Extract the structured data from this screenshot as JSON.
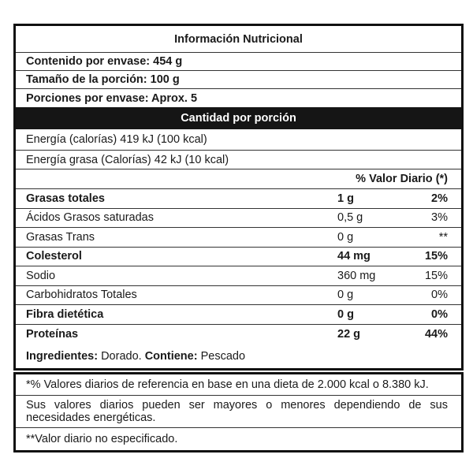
{
  "title": "Información Nutricional",
  "info": [
    "Contenido por envase: 454 g",
    "Tamaño de la porción: 100 g",
    "Porciones por envase: Aprox. 5"
  ],
  "band": "Cantidad por porción",
  "energy": [
    "Energía (calorías) 419 kJ (100 kcal)",
    "Energía grasa (Calorías) 42 kJ (10 kcal)"
  ],
  "vd_header": "% Valor Diario (*)",
  "nutrients": [
    {
      "name": "Grasas totales",
      "amount": "1 g",
      "pct": "2%",
      "bold": true
    },
    {
      "name": "Ácidos Grasos saturadas",
      "amount": "0,5 g",
      "pct": "3%",
      "bold": false
    },
    {
      "name": "Grasas Trans",
      "amount": "0 g",
      "pct": "**",
      "bold": false
    },
    {
      "name": "Colesterol",
      "amount": "44 mg",
      "pct": "15%",
      "bold": true
    },
    {
      "name": "Sodio",
      "amount": "360 mg",
      "pct": "15%",
      "bold": false
    },
    {
      "name": "Carbohidratos Totales",
      "amount": "0 g",
      "pct": "0%",
      "bold": false
    },
    {
      "name": "Fibra dietética",
      "amount": "0 g",
      "pct": "0%",
      "bold": true
    },
    {
      "name": "Proteínas",
      "amount": "22 g",
      "pct": "44%",
      "bold": true
    }
  ],
  "ingredients": {
    "label": "Ingredientes:",
    "value": " Dorado. ",
    "contains_label": "Contiene:",
    "contains_value": " Pescado"
  },
  "footnotes": [
    "*% Valores diarios de referencia en base en una dieta de 2.000 kcal o 8.380 kJ.",
    "Sus valores diarios pueden ser mayores o menores dependiendo de sus necesidades energéticas.",
    "**Valor diario no especificado."
  ]
}
